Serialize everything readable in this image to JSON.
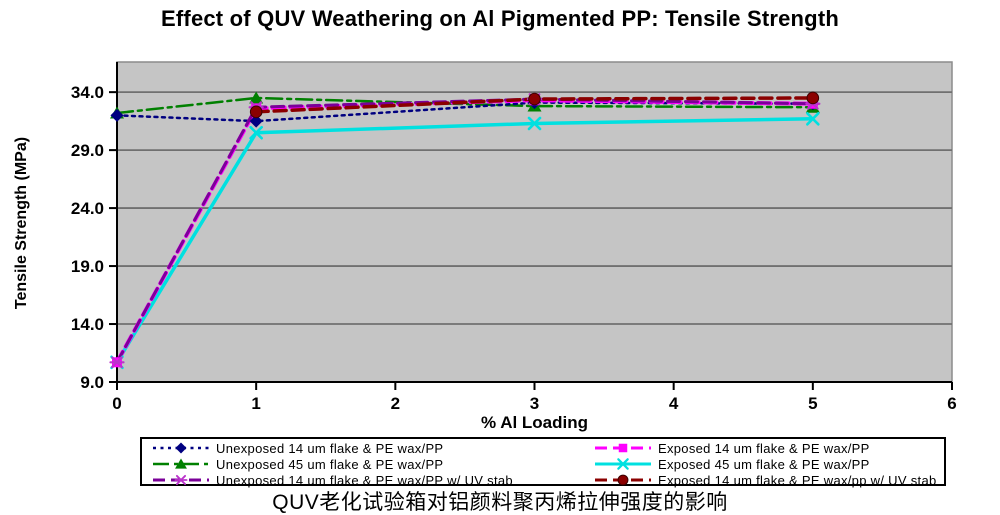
{
  "caption": "QUV老化试验箱对铝颜料聚丙烯拉伸强度的影响",
  "chart_data": {
    "type": "line",
    "title": "Effect of QUV Weathering on Al Pigmented PP:  Tensile Strength",
    "xlabel": "% Al Loading",
    "ylabel": "Tensile Strength (MPa)",
    "xlim": [
      0,
      6
    ],
    "ylim": [
      9.0,
      36.6
    ],
    "x_ticks": [
      0,
      1,
      2,
      3,
      4,
      5,
      6
    ],
    "y_ticks": [
      9.0,
      14.0,
      19.0,
      24.0,
      29.0,
      34.0
    ],
    "y_tick_labels": [
      "9.0",
      "14.0",
      "19.0",
      "24.0",
      "29.0",
      "34.0"
    ],
    "grid": true,
    "plot_bg_color": "#c5c5c5",
    "grid_color": "#707070",
    "axis_color": "#000000",
    "legend_position": "bottom",
    "series": [
      {
        "name": "Unexposed 14 um flake & PE wax/PP",
        "line_color": "#000080",
        "marker_color": "#000080",
        "marker": "diamond",
        "line_style": "dotted",
        "line_width": 2.5,
        "x": [
          0,
          1,
          3,
          5
        ],
        "y": [
          32.0,
          31.5,
          33.1,
          33.0
        ]
      },
      {
        "name": "Unexposed 45 um flake & PE wax/PP",
        "line_color": "#008000",
        "marker_color": "#008000",
        "marker": "triangle",
        "line_style": "dashdot",
        "line_width": 2.5,
        "x": [
          0,
          1,
          3,
          5
        ],
        "y": [
          32.2,
          33.5,
          32.8,
          32.7
        ]
      },
      {
        "name": "Unexposed 14 um flake & PE wax/PP w/ UV stab",
        "line_color": "#7b0099",
        "marker_color": "#bb33cc",
        "marker": "asterisk",
        "line_style": "dashed",
        "line_width": 3,
        "x": [
          0,
          1,
          3,
          5
        ],
        "y": [
          10.7,
          32.7,
          33.4,
          33.0
        ]
      },
      {
        "name": "Exposed 14 um flake & PE wax/PP",
        "line_color": "#ff00ff",
        "marker_color": "#ff00ff",
        "marker": "square",
        "line_style": "dashed",
        "line_width": 4,
        "x": [
          0,
          1,
          3,
          5
        ],
        "y": [
          10.7,
          32.6,
          33.3,
          33.0
        ]
      },
      {
        "name": "Exposed 45 um flake & PE wax/PP",
        "line_color": "#00e0e0",
        "marker_color": "#00e0e0",
        "marker": "x",
        "line_style": "solid",
        "line_width": 3.5,
        "x": [
          0,
          1,
          3,
          5
        ],
        "y": [
          10.7,
          30.5,
          31.3,
          31.7
        ]
      },
      {
        "name": "Exposed 14 um flake & PE wax/pp w/ UV stab",
        "line_color": "#8b0000",
        "marker_color": "#8b0000",
        "marker": "circle",
        "line_style": "dashed",
        "line_width": 3.5,
        "x": [
          1,
          3,
          5
        ],
        "y": [
          32.3,
          33.4,
          33.5
        ]
      }
    ]
  }
}
